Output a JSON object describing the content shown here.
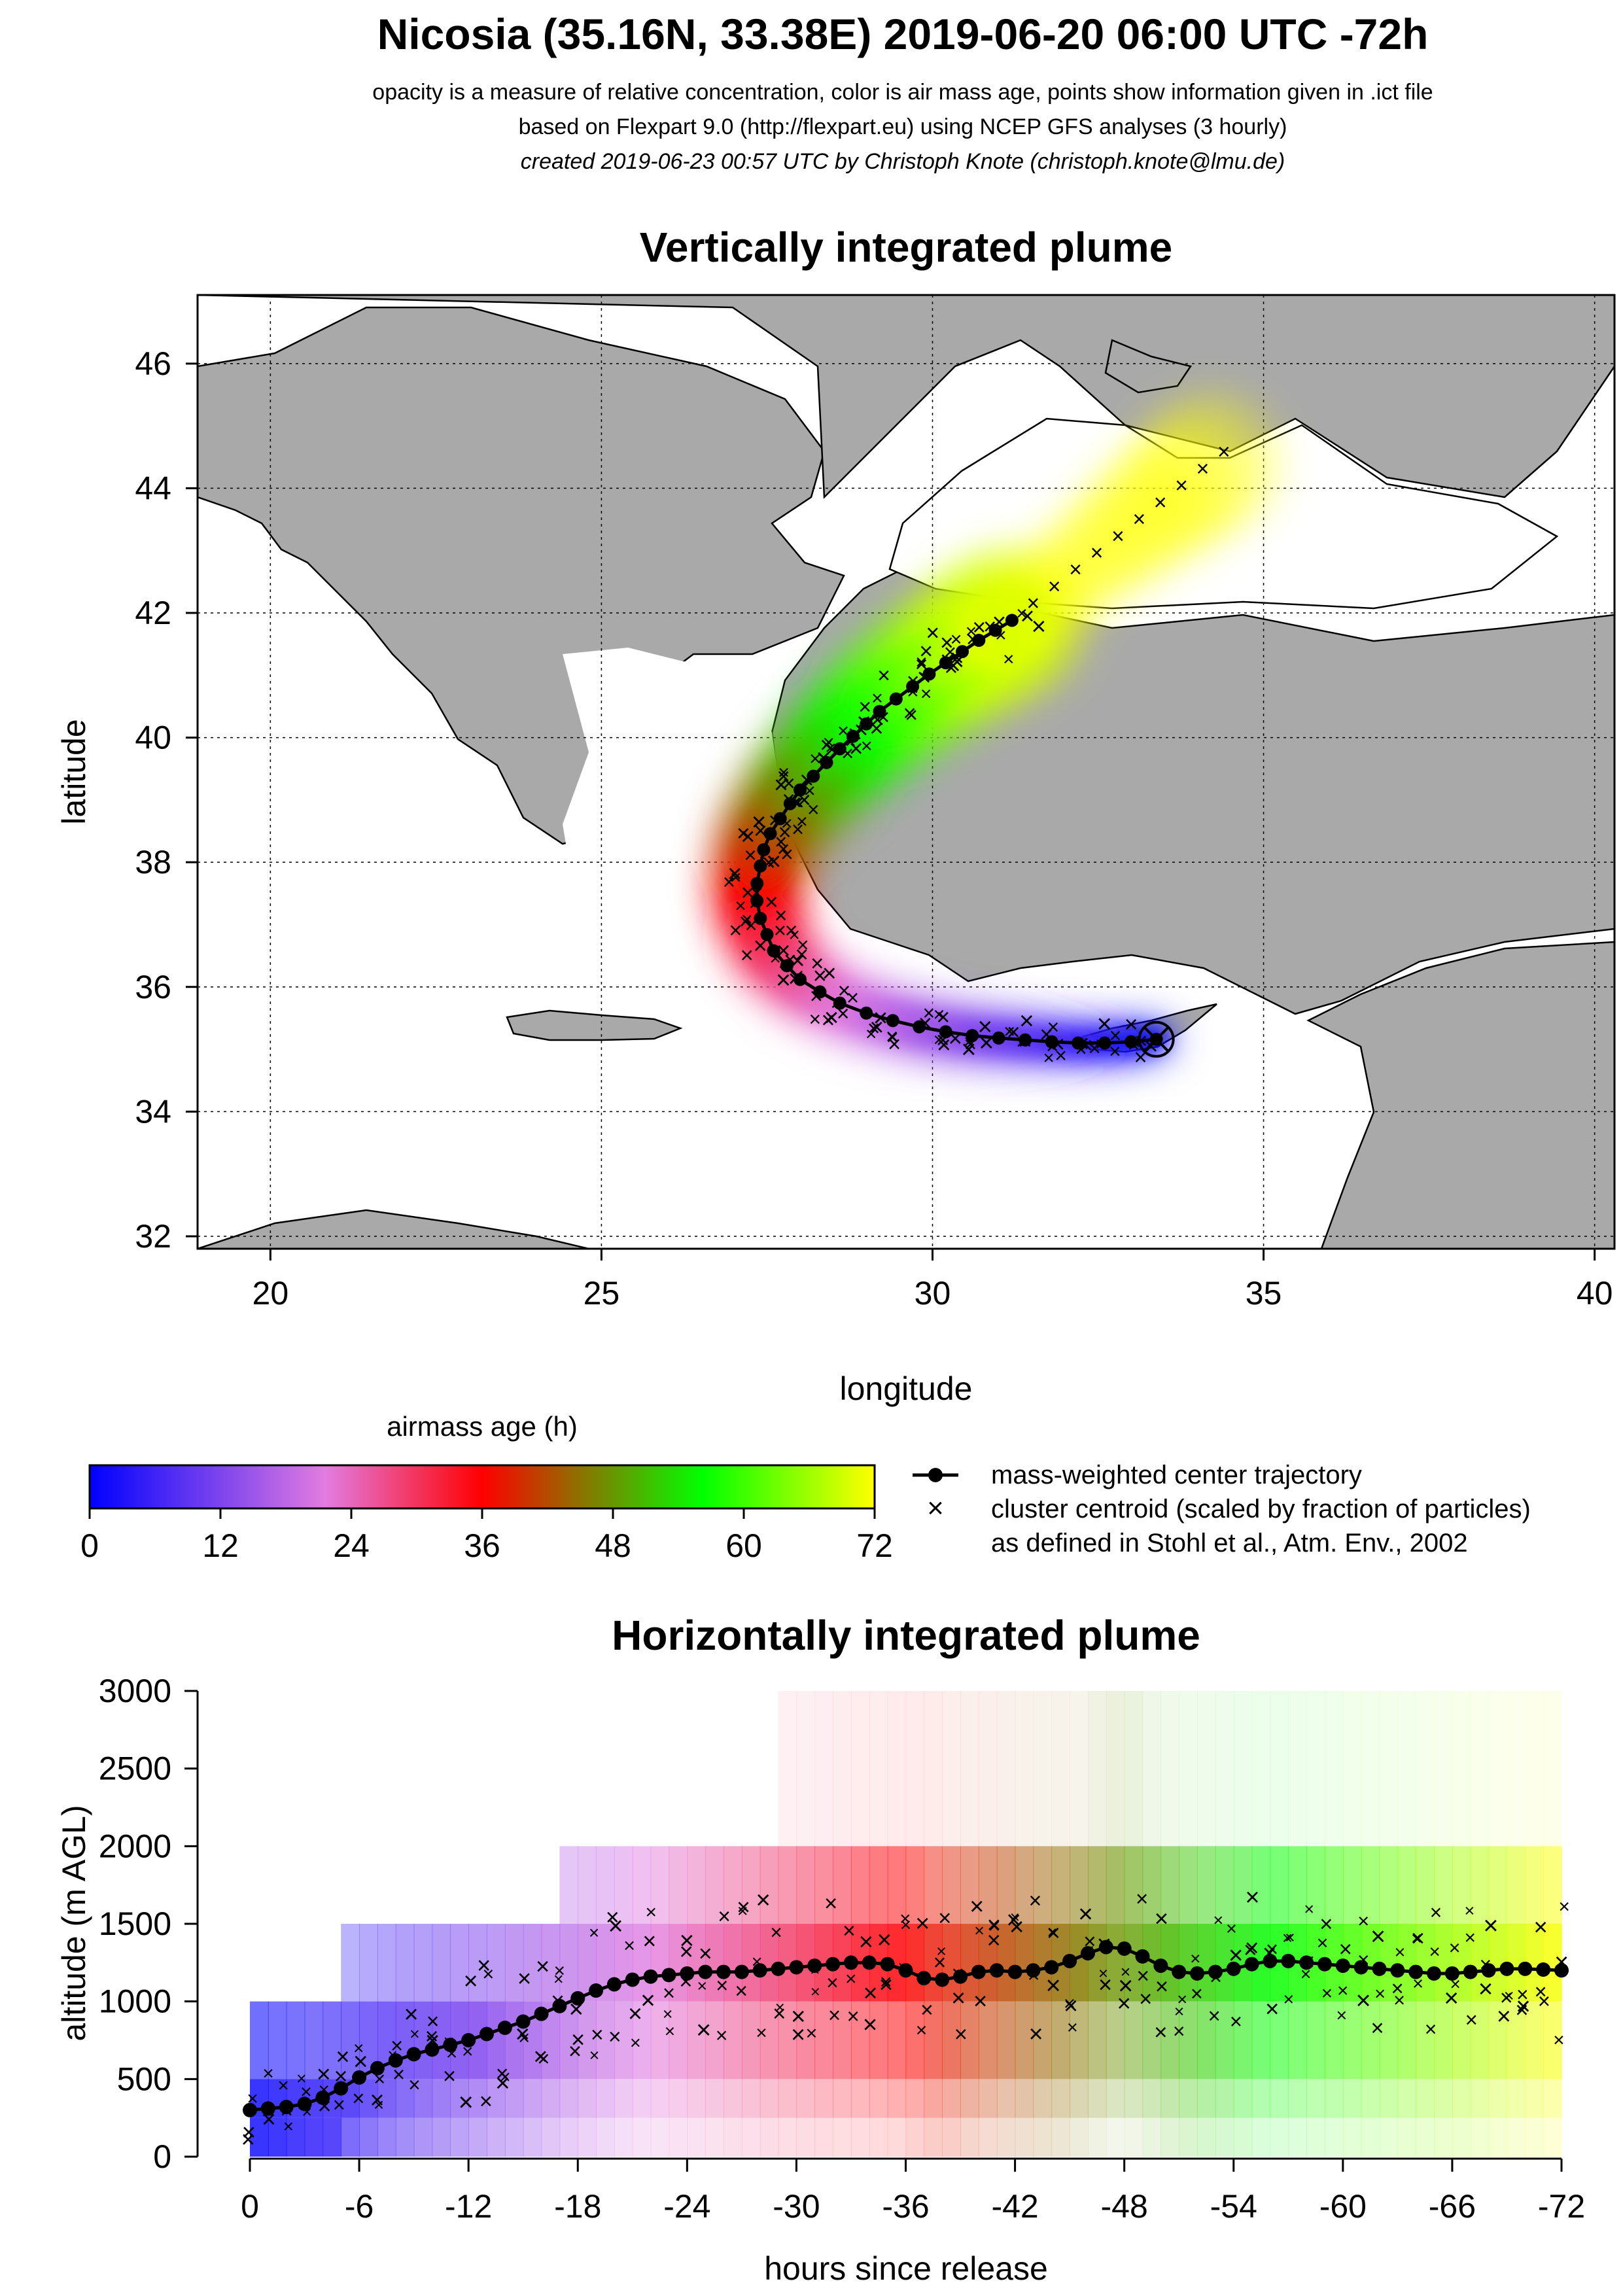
{
  "header": {
    "title": "Nicosia (35.16N, 33.38E) 2019-06-20 06:00 UTC -72h",
    "line1": "opacity is a measure of relative concentration, color is air mass age, points show information given in .ict file",
    "line2": "based on Flexpart 9.0 (http://flexpart.eu) using NCEP GFS analyses (3 hourly)",
    "line3": "created 2019-06-23 00:57 UTC by Christoph Knote (christoph.knote@lmu.de)"
  },
  "colorbar": {
    "title": "airmass age (h)",
    "ticks": [
      "0",
      "12",
      "24",
      "36",
      "48",
      "60",
      "72"
    ],
    "stops": [
      "#0000ff",
      "#e27ce0",
      "#ff0000",
      "#00ff00",
      "#ffff00"
    ]
  },
  "legend": {
    "trajectory": "mass-weighted center trajectory",
    "cluster_line1": "cluster centroid (scaled by fraction of particles)",
    "cluster_line2": "as defined in Stohl et al., Atm. Env., 2002"
  },
  "chart_data": [
    {
      "type": "map",
      "title": "Vertically integrated plume",
      "xlabel": "longitude",
      "ylabel": "latitude",
      "xlim": [
        18.9,
        40.3
      ],
      "ylim": [
        31.8,
        47.1
      ],
      "xticks": [
        "20",
        "25",
        "30",
        "35",
        "40"
      ],
      "yticks": [
        "32",
        "34",
        "36",
        "38",
        "40",
        "42",
        "44",
        "46"
      ],
      "grid": true,
      "release_point": {
        "lon": 33.38,
        "lat": 35.16
      },
      "trajectory": {
        "lon": [
          33.38,
          33.0,
          32.6,
          32.2,
          31.8,
          31.4,
          31.0,
          30.6,
          30.2,
          29.8,
          29.4,
          29.0,
          28.6,
          28.3,
          28.0,
          27.8,
          27.6,
          27.5,
          27.4,
          27.35,
          27.35,
          27.4,
          27.45,
          27.55,
          27.7,
          27.85,
          28.0,
          28.2,
          28.4,
          28.6,
          28.8,
          29.0,
          29.2,
          29.45,
          29.7,
          29.95,
          30.2,
          30.45,
          30.7,
          30.95,
          31.2
        ],
        "lat": [
          35.16,
          35.12,
          35.1,
          35.1,
          35.12,
          35.15,
          35.18,
          35.22,
          35.28,
          35.36,
          35.46,
          35.58,
          35.74,
          35.92,
          36.12,
          36.34,
          36.58,
          36.84,
          37.1,
          37.38,
          37.66,
          37.94,
          38.2,
          38.46,
          38.7,
          38.94,
          39.16,
          39.38,
          39.6,
          39.82,
          40.02,
          40.22,
          40.42,
          40.62,
          40.82,
          41.02,
          41.2,
          41.38,
          41.56,
          41.72,
          41.88
        ]
      }
    },
    {
      "type": "area",
      "title": "Horizontally integrated plume",
      "xlabel": "hours since release",
      "ylabel": "altitude (m AGL)",
      "xlim": [
        0,
        -72
      ],
      "ylim": [
        0,
        3000
      ],
      "xticks": [
        "0",
        "-6",
        "-12",
        "-18",
        "-24",
        "-30",
        "-36",
        "-42",
        "-48",
        "-54",
        "-60",
        "-66",
        "-72"
      ],
      "yticks": [
        "0",
        "500",
        "1000",
        "1500",
        "2000",
        "2500",
        "3000"
      ],
      "series": [
        {
          "x": [
            0,
            -1,
            -2,
            -3,
            -4,
            -5,
            -6,
            -7,
            -8,
            -9,
            -10,
            -11,
            -12,
            -13,
            -14,
            -15,
            -16,
            -17,
            -18,
            -19,
            -20,
            -21,
            -22,
            -23,
            -24,
            -25,
            -26,
            -27,
            -28,
            -29,
            -30,
            -31,
            -32,
            -33,
            -34,
            -35,
            -36,
            -37,
            -38,
            -39,
            -40,
            -41,
            -42,
            -43,
            -44,
            -45,
            -46,
            -47,
            -48,
            -49,
            -50,
            -51,
            -52,
            -53,
            -54,
            -55,
            -56,
            -57,
            -58,
            -59,
            -60,
            -61,
            -62,
            -63,
            -64,
            -65,
            -66,
            -67,
            -68,
            -69,
            -70,
            -71,
            -72
          ],
          "y": [
            300,
            310,
            320,
            340,
            380,
            440,
            510,
            570,
            620,
            660,
            690,
            720,
            750,
            790,
            830,
            870,
            920,
            970,
            1020,
            1070,
            1110,
            1140,
            1160,
            1170,
            1180,
            1190,
            1190,
            1190,
            1200,
            1210,
            1220,
            1230,
            1240,
            1250,
            1250,
            1240,
            1200,
            1150,
            1140,
            1160,
            1190,
            1200,
            1190,
            1200,
            1220,
            1260,
            1310,
            1350,
            1340,
            1290,
            1230,
            1190,
            1180,
            1190,
            1210,
            1240,
            1260,
            1260,
            1250,
            1240,
            1230,
            1220,
            1210,
            1200,
            1190,
            1180,
            1180,
            1190,
            1200,
            1210,
            1210,
            1205,
            1200
          ]
        }
      ]
    }
  ]
}
